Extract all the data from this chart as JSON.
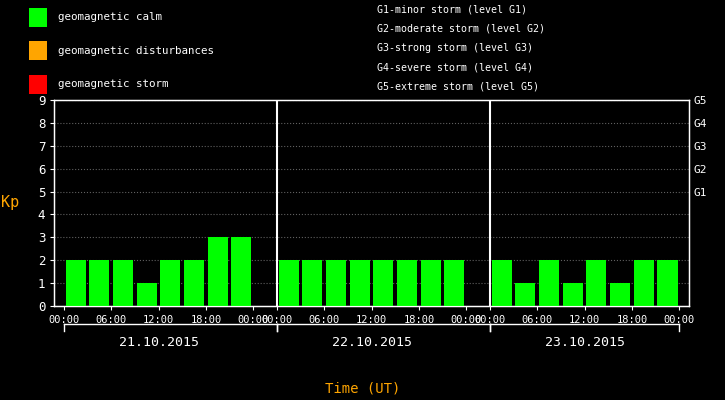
{
  "bg_color": "#000000",
  "bar_color_calm": "#00ff00",
  "bar_color_disturb": "#ffa500",
  "bar_color_storm": "#ff0000",
  "text_color": "#ffffff",
  "ylabel": "Kp",
  "xlabel": "Time (UT)",
  "ylabel_color": "#ffa500",
  "xlabel_color": "#ffa500",
  "ylim": [
    0,
    9
  ],
  "dates": [
    "21.10.2015",
    "22.10.2015",
    "23.10.2015"
  ],
  "legend_items": [
    {
      "label": "geomagnetic calm",
      "color": "#00ff00"
    },
    {
      "label": "geomagnetic disturbances",
      "color": "#ffa500"
    },
    {
      "label": "geomagnetic storm",
      "color": "#ff0000"
    }
  ],
  "right_legend": [
    "G1-minor storm (level G1)",
    "G2-moderate storm (level G2)",
    "G3-strong storm (level G3)",
    "G4-severe storm (level G4)",
    "G5-extreme storm (level G5)"
  ],
  "day1": [
    2,
    2,
    2,
    1,
    2,
    2,
    3,
    3
  ],
  "day2": [
    2,
    2,
    2,
    2,
    2,
    2,
    2,
    2
  ],
  "day3": [
    2,
    1,
    2,
    1,
    2,
    1,
    2,
    2
  ],
  "separator_color": "#ffffff",
  "spine_color": "#ffffff",
  "tick_color": "#ffffff",
  "dot_grid_color": "#606060",
  "g_positions": [
    5,
    6,
    7,
    8,
    9
  ],
  "g_labels": [
    "G1",
    "G2",
    "G3",
    "G4",
    "G5"
  ],
  "time_labels": [
    "00:00",
    "06:00",
    "12:00",
    "18:00",
    "00:00"
  ]
}
